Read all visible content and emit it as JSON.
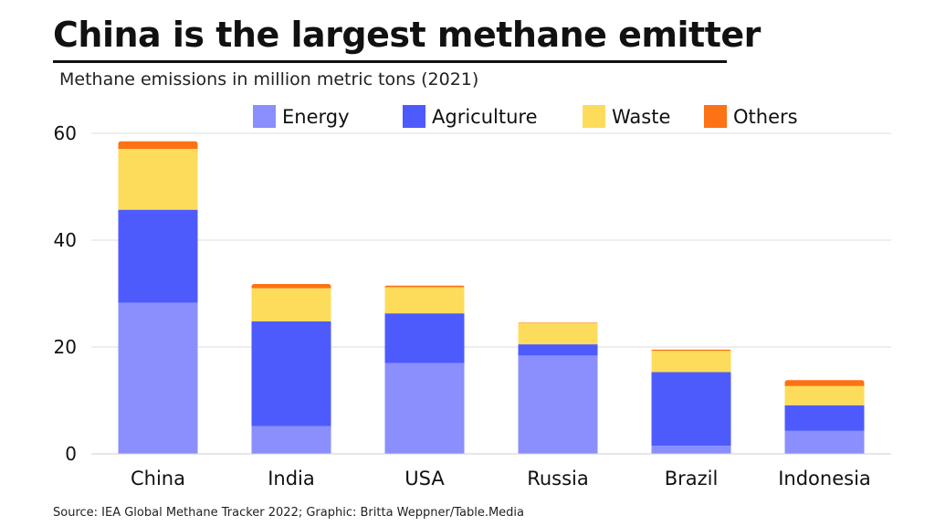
{
  "chart_data": {
    "type": "bar",
    "stacked": true,
    "title": "China is the largest methane emitter",
    "subtitle": "Methane emissions in million metric tons (2021)",
    "source": "Source: IEA Global Methane Tracker 2022; Graphic: Britta Weppner/Table.Media",
    "categories": [
      "China",
      "India",
      "USA",
      "Russia",
      "Brazil",
      "Indonesia"
    ],
    "series": [
      {
        "name": "Energy",
        "color": "#8a8ffd",
        "values": [
          28.3,
          5.2,
          17.0,
          18.4,
          1.5,
          4.3
        ]
      },
      {
        "name": "Agriculture",
        "color": "#4e5bfc",
        "values": [
          17.4,
          19.6,
          9.3,
          2.1,
          13.8,
          4.8
        ]
      },
      {
        "name": "Waste",
        "color": "#fddc5c",
        "values": [
          11.4,
          6.2,
          4.9,
          4.0,
          4.0,
          3.6
        ]
      },
      {
        "name": "Others",
        "color": "#fb7314",
        "values": [
          1.4,
          0.8,
          0.3,
          0.1,
          0.2,
          1.1
        ]
      }
    ],
    "ylim": [
      0,
      60
    ],
    "yticks": [
      0,
      20,
      40,
      60
    ],
    "grid": true,
    "legend_position": "top",
    "xlabel": "",
    "ylabel": ""
  }
}
